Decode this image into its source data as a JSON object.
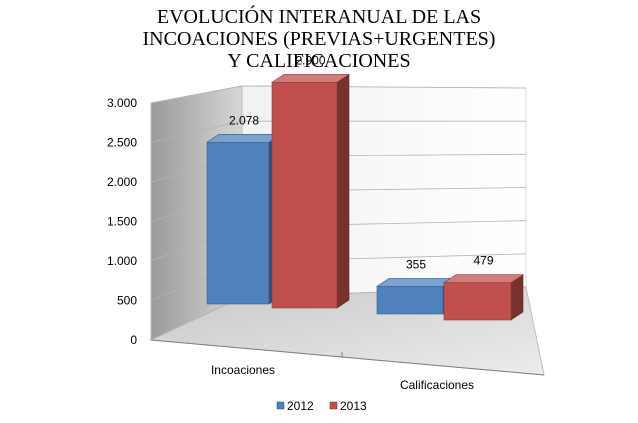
{
  "chart_data": {
    "type": "bar",
    "title": "EVOLUCIÓN INTERANUAL DE LAS\nINCOACIONES (PREVIAS+URGENTES)\nY CALIFICACIONES",
    "categories": [
      "Incoaciones",
      "Calificaciones"
    ],
    "series": [
      {
        "name": "2012",
        "values": [
          2078,
          355
        ],
        "labels": [
          "2.078",
          "355"
        ],
        "color": "#4f81bd"
      },
      {
        "name": "2013",
        "values": [
          2900,
          479
        ],
        "labels": [
          "2.900",
          "479"
        ],
        "color": "#c0504d"
      }
    ],
    "ylim": [
      0,
      3000
    ],
    "yticks": [
      0,
      500,
      1000,
      1500,
      2000,
      2500,
      3000
    ],
    "ytick_labels": [
      "0",
      "500",
      "1.000",
      "1.500",
      "2.000",
      "2.500",
      "3.000"
    ],
    "style": "3d-clustered-column",
    "grid": true,
    "legend_position": "bottom"
  }
}
